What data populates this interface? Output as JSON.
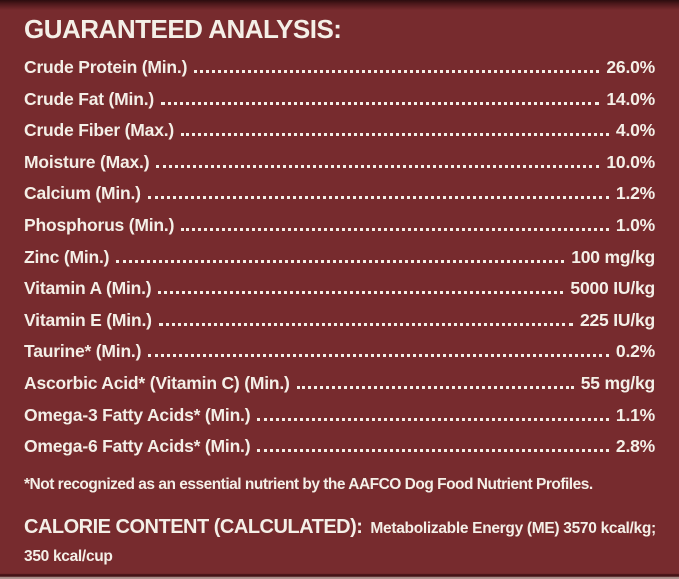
{
  "colors": {
    "background": "#772B2E",
    "text": "#F4EFE7",
    "top_strip": "#2B0C0E",
    "bottom_line_dark": "#451316",
    "bottom_line_light": "#AE948F"
  },
  "title": "GUARANTEED ANALYSIS:",
  "rows": [
    {
      "label": "Crude Protein (Min.)",
      "value": "26.0%"
    },
    {
      "label": "Crude Fat (Min.)",
      "value": "14.0%"
    },
    {
      "label": "Crude Fiber (Max.)",
      "value": "4.0%"
    },
    {
      "label": "Moisture (Max.)",
      "value": "10.0%"
    },
    {
      "label": "Calcium (Min.)",
      "value": "1.2%"
    },
    {
      "label": "Phosphorus (Min.)",
      "value": "1.0%"
    },
    {
      "label": "Zinc (Min.)",
      "value": "100 mg/kg"
    },
    {
      "label": "Vitamin A (Min.)",
      "value": "5000 IU/kg"
    },
    {
      "label": "Vitamin E (Min.)",
      "value": "225 IU/kg"
    },
    {
      "label": "Taurine* (Min.)",
      "value": "0.2%"
    },
    {
      "label": "Ascorbic Acid* (Vitamin C) (Min.)",
      "value": "55 mg/kg"
    },
    {
      "label": "Omega-3 Fatty Acids* (Min.)",
      "value": "1.1%"
    },
    {
      "label": "Omega-6 Fatty Acids* (Min.)",
      "value": "2.8%"
    }
  ],
  "footnote": "*Not recognized as an essential nutrient by the AAFCO Dog Food Nutrient Profiles.",
  "calorie": {
    "heading": "CALORIE CONTENT (CALCULATED):",
    "energy": "Metabolizable Energy (ME) 3570 kcal/kg;",
    "per_cup": "350 kcal/cup"
  }
}
